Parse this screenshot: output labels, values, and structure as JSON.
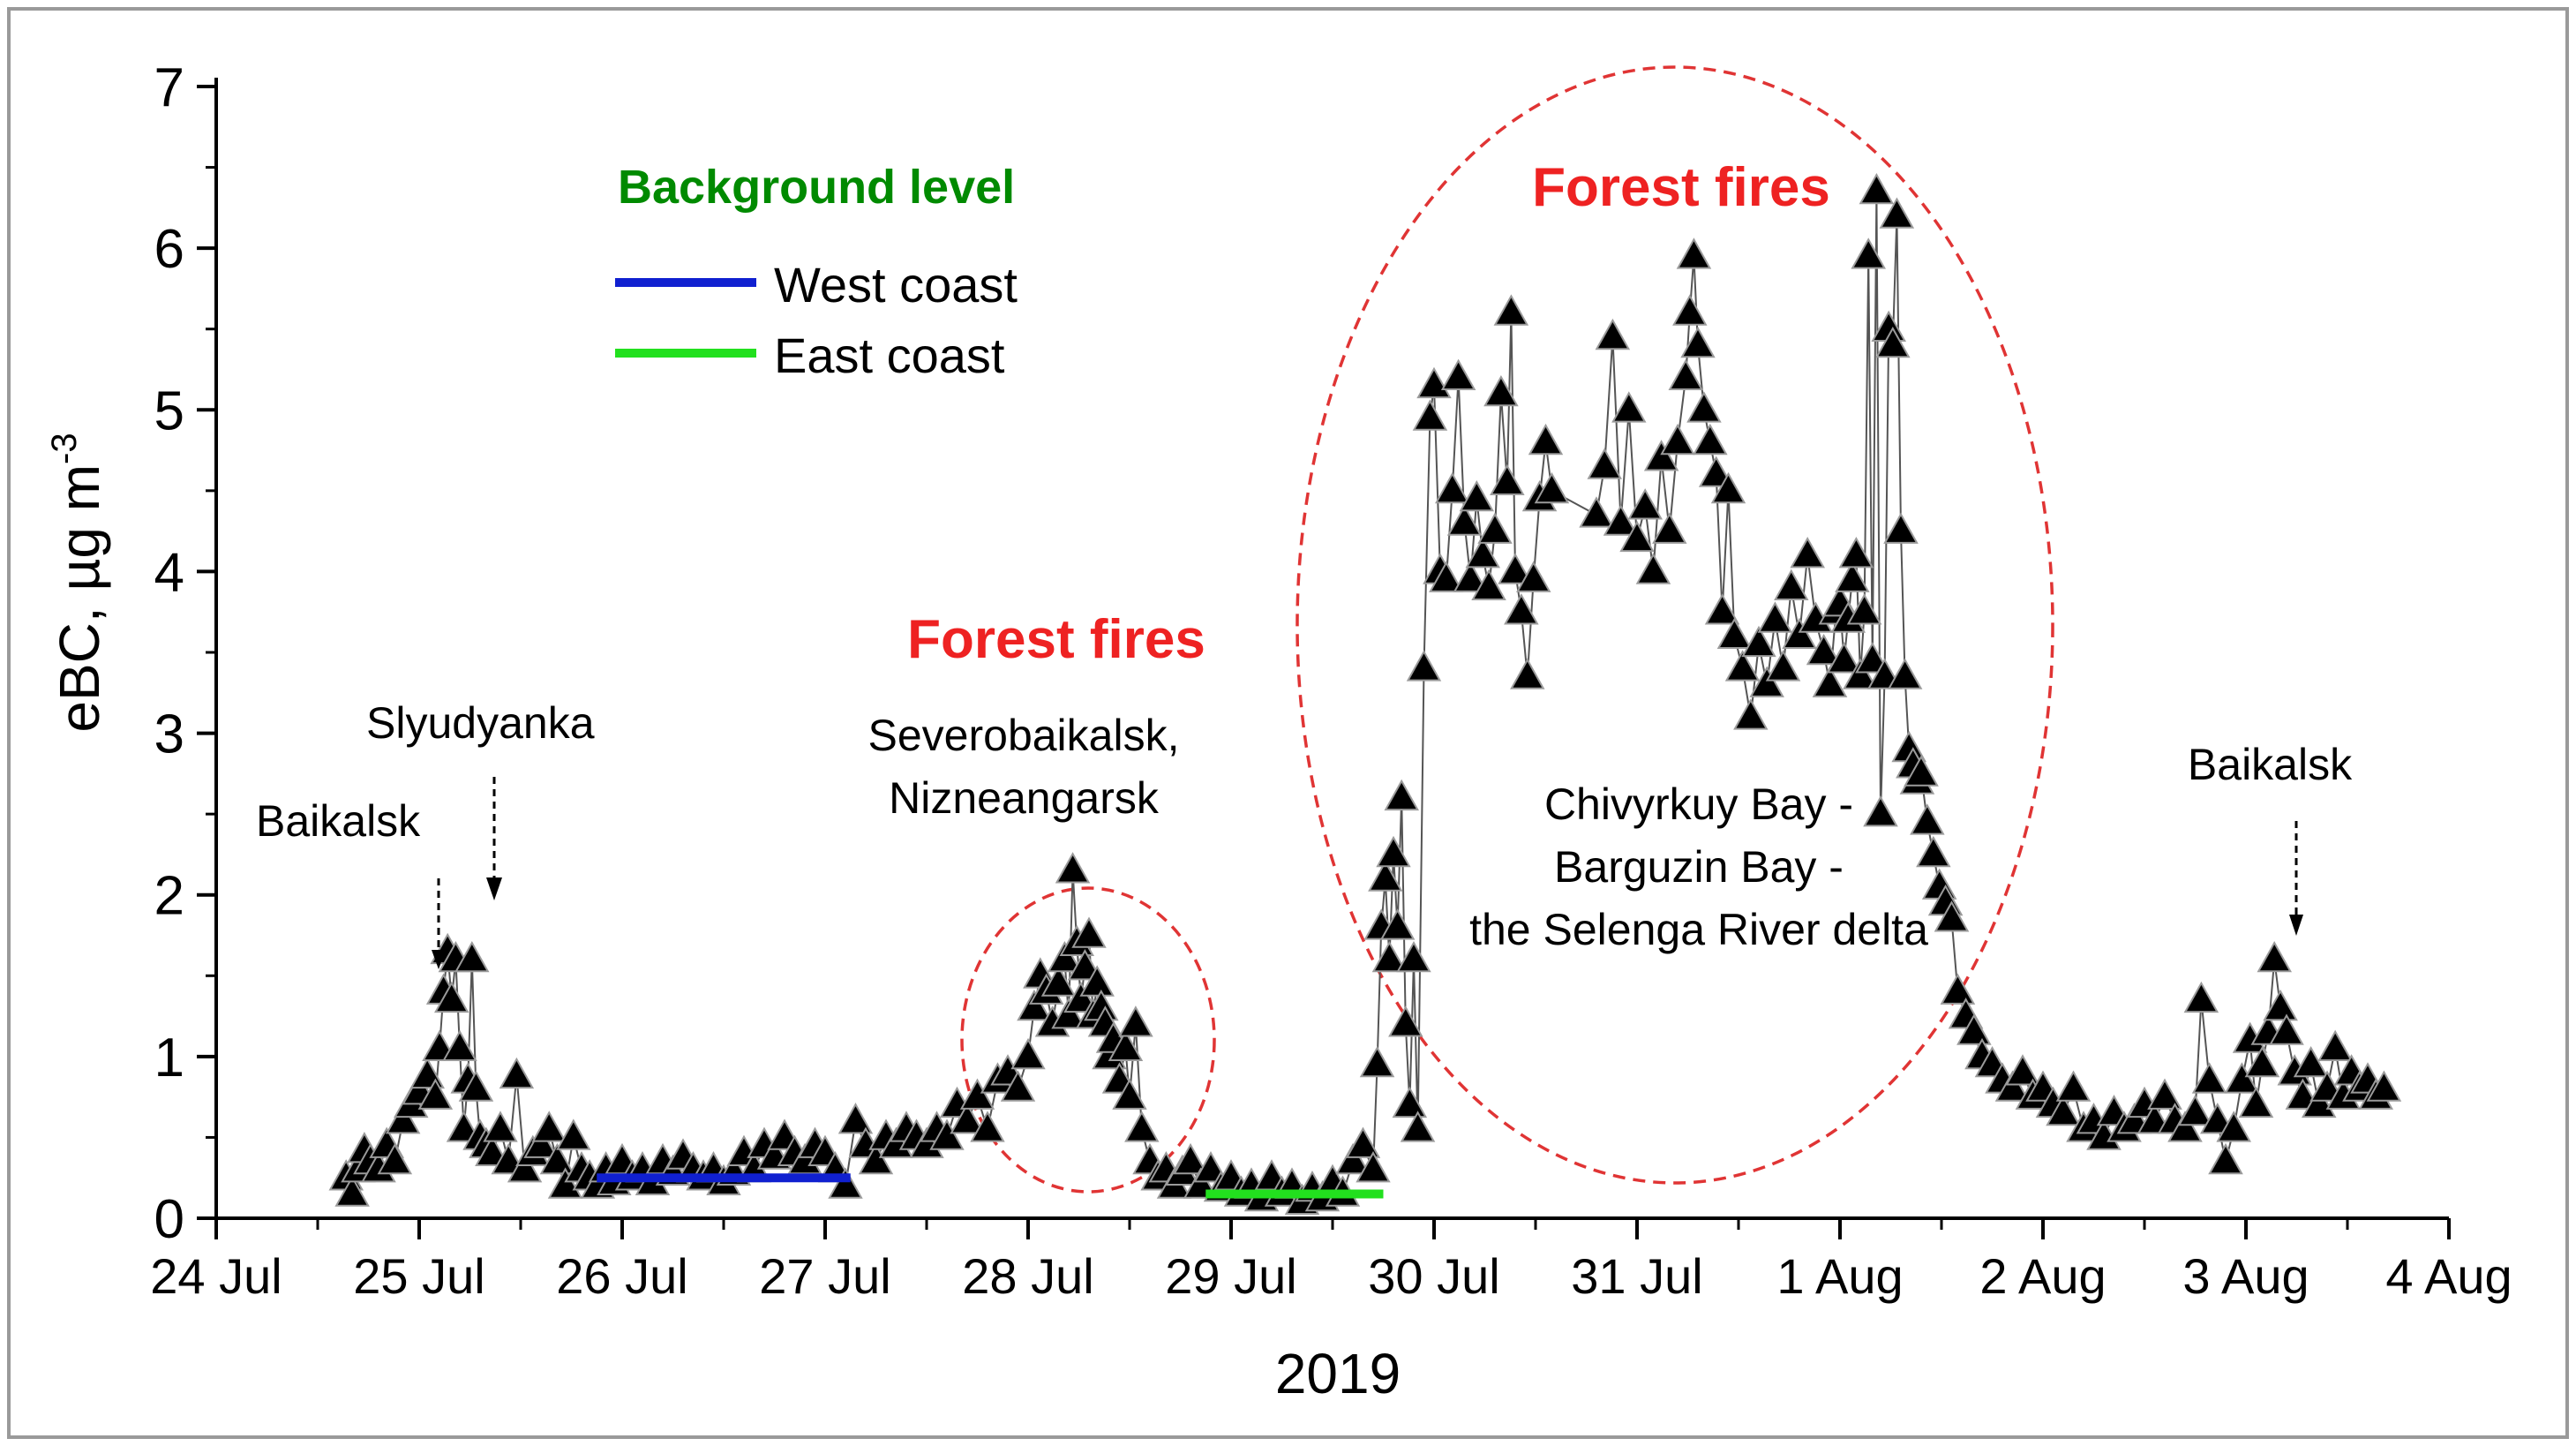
{
  "chart_data": {
    "type": "scatter",
    "xlabel": "2019",
    "ylabel_main": "eBC, µg m",
    "ylabel_sup": "-3",
    "xlim": [
      "2019-07-24",
      "2019-08-04"
    ],
    "ylim": [
      0,
      7
    ],
    "grid": false,
    "xticks": [
      "24 Jul",
      "25 Jul",
      "26 Jul",
      "27 Jul",
      "28 Jul",
      "29 Jul",
      "30 Jul",
      "31 Jul",
      "1 Aug",
      "2 Aug",
      "3 Aug",
      "4 Aug"
    ],
    "yticks": [
      "0",
      "1",
      "2",
      "3",
      "4",
      "5",
      "6",
      "7"
    ],
    "legend": {
      "title": "Background level",
      "title_color": "#008a00",
      "items": [
        {
          "label": "West coast",
          "color": "#1020d0"
        },
        {
          "label": "East coast",
          "color": "#22e01e"
        }
      ]
    },
    "background_levels": [
      {
        "name": "West coast",
        "color": "#1020d0",
        "x_start": "2019-07-25T21:00",
        "x_end": "2019-07-27T03:00",
        "y": 0.25
      },
      {
        "name": "East coast",
        "color": "#22e01e",
        "x_start": "2019-07-28T21:00",
        "x_end": "2019-07-29T18:00",
        "y": 0.15
      }
    ],
    "annotations": {
      "baikalsk_left": "Baikalsk",
      "slyudyanka": "Slyudyanka",
      "forest_fires_1": "Forest fires",
      "severobaikalsk_l1": "Severobaikalsk,",
      "severobaikalsk_l2": "Nizneangarsk",
      "forest_fires_2": "Forest fires",
      "chivyrkuy_l1": "Chivyrkuy Bay -",
      "chivyrkuy_l2": "Barguzin Bay -",
      "chivyrkuy_l3": "the Selenga River delta",
      "baikalsk_right": "Baikalsk"
    },
    "series": [
      {
        "name": "eBC",
        "color": "#000000",
        "points": [
          [
            0.64,
            0.25
          ],
          [
            0.67,
            0.15
          ],
          [
            0.7,
            0.3
          ],
          [
            0.73,
            0.42
          ],
          [
            0.76,
            0.35
          ],
          [
            0.8,
            0.3
          ],
          [
            0.84,
            0.45
          ],
          [
            0.88,
            0.35
          ],
          [
            0.92,
            0.6
          ],
          [
            0.96,
            0.7
          ],
          [
            1.0,
            0.78
          ],
          [
            1.04,
            0.88
          ],
          [
            1.08,
            0.75
          ],
          [
            1.1,
            1.05
          ],
          [
            1.12,
            1.4
          ],
          [
            1.14,
            1.65
          ],
          [
            1.16,
            1.35
          ],
          [
            1.18,
            1.6
          ],
          [
            1.2,
            1.05
          ],
          [
            1.22,
            0.55
          ],
          [
            1.24,
            0.85
          ],
          [
            1.26,
            1.6
          ],
          [
            1.28,
            0.8
          ],
          [
            1.3,
            0.5
          ],
          [
            1.33,
            0.45
          ],
          [
            1.36,
            0.4
          ],
          [
            1.4,
            0.55
          ],
          [
            1.44,
            0.35
          ],
          [
            1.48,
            0.88
          ],
          [
            1.52,
            0.3
          ],
          [
            1.56,
            0.4
          ],
          [
            1.6,
            0.45
          ],
          [
            1.64,
            0.55
          ],
          [
            1.68,
            0.35
          ],
          [
            1.72,
            0.2
          ],
          [
            1.76,
            0.5
          ],
          [
            1.8,
            0.3
          ],
          [
            1.84,
            0.25
          ],
          [
            1.88,
            0.2
          ],
          [
            1.92,
            0.3
          ],
          [
            1.96,
            0.22
          ],
          [
            2.0,
            0.35
          ],
          [
            2.05,
            0.25
          ],
          [
            2.1,
            0.3
          ],
          [
            2.15,
            0.22
          ],
          [
            2.2,
            0.35
          ],
          [
            2.25,
            0.28
          ],
          [
            2.3,
            0.38
          ],
          [
            2.35,
            0.3
          ],
          [
            2.4,
            0.25
          ],
          [
            2.45,
            0.3
          ],
          [
            2.5,
            0.22
          ],
          [
            2.55,
            0.28
          ],
          [
            2.6,
            0.4
          ],
          [
            2.65,
            0.3
          ],
          [
            2.7,
            0.45
          ],
          [
            2.75,
            0.38
          ],
          [
            2.8,
            0.5
          ],
          [
            2.85,
            0.4
          ],
          [
            2.9,
            0.35
          ],
          [
            2.95,
            0.45
          ],
          [
            3.0,
            0.4
          ],
          [
            3.05,
            0.3
          ],
          [
            3.1,
            0.2
          ],
          [
            3.15,
            0.6
          ],
          [
            3.2,
            0.45
          ],
          [
            3.25,
            0.35
          ],
          [
            3.3,
            0.5
          ],
          [
            3.35,
            0.45
          ],
          [
            3.4,
            0.55
          ],
          [
            3.45,
            0.5
          ],
          [
            3.5,
            0.45
          ],
          [
            3.55,
            0.55
          ],
          [
            3.6,
            0.5
          ],
          [
            3.65,
            0.7
          ],
          [
            3.7,
            0.6
          ],
          [
            3.75,
            0.75
          ],
          [
            3.8,
            0.55
          ],
          [
            3.85,
            0.85
          ],
          [
            3.9,
            0.9
          ],
          [
            3.95,
            0.8
          ],
          [
            4.0,
            1.0
          ],
          [
            4.03,
            1.3
          ],
          [
            4.06,
            1.5
          ],
          [
            4.09,
            1.4
          ],
          [
            4.12,
            1.2
          ],
          [
            4.15,
            1.45
          ],
          [
            4.18,
            1.6
          ],
          [
            4.2,
            1.25
          ],
          [
            4.22,
            2.15
          ],
          [
            4.24,
            1.7
          ],
          [
            4.26,
            1.35
          ],
          [
            4.28,
            1.55
          ],
          [
            4.3,
            1.75
          ],
          [
            4.32,
            1.25
          ],
          [
            4.34,
            1.45
          ],
          [
            4.36,
            1.3
          ],
          [
            4.38,
            1.2
          ],
          [
            4.4,
            1.0
          ],
          [
            4.42,
            1.1
          ],
          [
            4.45,
            0.85
          ],
          [
            4.48,
            1.05
          ],
          [
            4.5,
            0.75
          ],
          [
            4.53,
            1.2
          ],
          [
            4.56,
            0.55
          ],
          [
            4.6,
            0.35
          ],
          [
            4.64,
            0.25
          ],
          [
            4.68,
            0.3
          ],
          [
            4.72,
            0.2
          ],
          [
            4.76,
            0.28
          ],
          [
            4.8,
            0.35
          ],
          [
            4.85,
            0.2
          ],
          [
            4.9,
            0.3
          ],
          [
            4.95,
            0.18
          ],
          [
            5.0,
            0.25
          ],
          [
            5.05,
            0.15
          ],
          [
            5.1,
            0.2
          ],
          [
            5.15,
            0.12
          ],
          [
            5.2,
            0.25
          ],
          [
            5.25,
            0.15
          ],
          [
            5.3,
            0.2
          ],
          [
            5.35,
            0.1
          ],
          [
            5.4,
            0.18
          ],
          [
            5.45,
            0.12
          ],
          [
            5.5,
            0.22
          ],
          [
            5.55,
            0.15
          ],
          [
            5.6,
            0.35
          ],
          [
            5.65,
            0.45
          ],
          [
            5.7,
            0.3
          ],
          [
            5.72,
            0.95
          ],
          [
            5.74,
            1.8
          ],
          [
            5.76,
            2.1
          ],
          [
            5.78,
            1.6
          ],
          [
            5.8,
            2.25
          ],
          [
            5.82,
            1.8
          ],
          [
            5.84,
            2.6
          ],
          [
            5.86,
            1.2
          ],
          [
            5.88,
            0.7
          ],
          [
            5.9,
            1.6
          ],
          [
            5.92,
            0.55
          ],
          [
            5.95,
            3.4
          ],
          [
            5.98,
            4.95
          ],
          [
            6.0,
            5.15
          ],
          [
            6.03,
            4.0
          ],
          [
            6.06,
            3.95
          ],
          [
            6.09,
            4.5
          ],
          [
            6.12,
            5.2
          ],
          [
            6.15,
            4.3
          ],
          [
            6.18,
            3.95
          ],
          [
            6.21,
            4.45
          ],
          [
            6.24,
            4.1
          ],
          [
            6.27,
            3.9
          ],
          [
            6.3,
            4.25
          ],
          [
            6.33,
            5.1
          ],
          [
            6.36,
            4.55
          ],
          [
            6.38,
            5.6
          ],
          [
            6.4,
            4.0
          ],
          [
            6.43,
            3.75
          ],
          [
            6.46,
            3.35
          ],
          [
            6.49,
            3.95
          ],
          [
            6.52,
            4.45
          ],
          [
            6.55,
            4.8
          ],
          [
            6.58,
            4.5
          ],
          [
            6.8,
            4.35
          ],
          [
            6.84,
            4.65
          ],
          [
            6.88,
            5.45
          ],
          [
            6.92,
            4.3
          ],
          [
            6.96,
            5.0
          ],
          [
            7.0,
            4.2
          ],
          [
            7.04,
            4.4
          ],
          [
            7.08,
            4.0
          ],
          [
            7.12,
            4.7
          ],
          [
            7.16,
            4.25
          ],
          [
            7.2,
            4.8
          ],
          [
            7.24,
            5.2
          ],
          [
            7.26,
            5.6
          ],
          [
            7.28,
            5.95
          ],
          [
            7.3,
            5.4
          ],
          [
            7.33,
            5.0
          ],
          [
            7.36,
            4.8
          ],
          [
            7.39,
            4.6
          ],
          [
            7.42,
            3.75
          ],
          [
            7.45,
            4.5
          ],
          [
            7.48,
            3.6
          ],
          [
            7.52,
            3.4
          ],
          [
            7.56,
            3.1
          ],
          [
            7.6,
            3.55
          ],
          [
            7.64,
            3.3
          ],
          [
            7.68,
            3.7
          ],
          [
            7.72,
            3.4
          ],
          [
            7.76,
            3.9
          ],
          [
            7.8,
            3.6
          ],
          [
            7.84,
            4.1
          ],
          [
            7.88,
            3.7
          ],
          [
            7.92,
            3.5
          ],
          [
            7.95,
            3.3
          ],
          [
            7.98,
            3.75
          ],
          [
            8.0,
            3.8
          ],
          [
            8.02,
            3.45
          ],
          [
            8.04,
            3.7
          ],
          [
            8.06,
            3.95
          ],
          [
            8.08,
            4.1
          ],
          [
            8.1,
            3.35
          ],
          [
            8.12,
            3.75
          ],
          [
            8.14,
            5.95
          ],
          [
            8.16,
            3.45
          ],
          [
            8.18,
            6.35
          ],
          [
            8.2,
            2.5
          ],
          [
            8.22,
            3.35
          ],
          [
            8.24,
            5.5
          ],
          [
            8.26,
            5.4
          ],
          [
            8.28,
            6.2
          ],
          [
            8.3,
            4.25
          ],
          [
            8.32,
            3.35
          ],
          [
            8.34,
            2.9
          ],
          [
            8.36,
            2.8
          ],
          [
            8.38,
            2.7
          ],
          [
            8.4,
            2.75
          ],
          [
            8.43,
            2.45
          ],
          [
            8.46,
            2.25
          ],
          [
            8.49,
            2.05
          ],
          [
            8.52,
            1.95
          ],
          [
            8.55,
            1.85
          ],
          [
            8.58,
            1.4
          ],
          [
            8.62,
            1.25
          ],
          [
            8.66,
            1.15
          ],
          [
            8.7,
            1.0
          ],
          [
            8.75,
            0.95
          ],
          [
            8.8,
            0.85
          ],
          [
            8.85,
            0.8
          ],
          [
            8.9,
            0.9
          ],
          [
            8.95,
            0.75
          ],
          [
            9.0,
            0.8
          ],
          [
            9.05,
            0.7
          ],
          [
            9.1,
            0.65
          ],
          [
            9.15,
            0.8
          ],
          [
            9.2,
            0.55
          ],
          [
            9.25,
            0.6
          ],
          [
            9.3,
            0.5
          ],
          [
            9.35,
            0.65
          ],
          [
            9.4,
            0.55
          ],
          [
            9.45,
            0.6
          ],
          [
            9.5,
            0.7
          ],
          [
            9.55,
            0.6
          ],
          [
            9.6,
            0.75
          ],
          [
            9.65,
            0.6
          ],
          [
            9.7,
            0.55
          ],
          [
            9.75,
            0.65
          ],
          [
            9.78,
            1.35
          ],
          [
            9.82,
            0.85
          ],
          [
            9.86,
            0.6
          ],
          [
            9.9,
            0.35
          ],
          [
            9.94,
            0.55
          ],
          [
            9.98,
            0.85
          ],
          [
            10.02,
            1.1
          ],
          [
            10.05,
            0.7
          ],
          [
            10.08,
            0.95
          ],
          [
            10.11,
            1.15
          ],
          [
            10.14,
            1.6
          ],
          [
            10.17,
            1.3
          ],
          [
            10.2,
            1.15
          ],
          [
            10.24,
            0.9
          ],
          [
            10.28,
            0.75
          ],
          [
            10.32,
            0.95
          ],
          [
            10.36,
            0.7
          ],
          [
            10.4,
            0.8
          ],
          [
            10.44,
            1.05
          ],
          [
            10.48,
            0.75
          ],
          [
            10.52,
            0.9
          ],
          [
            10.56,
            0.8
          ],
          [
            10.6,
            0.85
          ],
          [
            10.64,
            0.75
          ],
          [
            10.68,
            0.8
          ]
        ]
      }
    ]
  }
}
